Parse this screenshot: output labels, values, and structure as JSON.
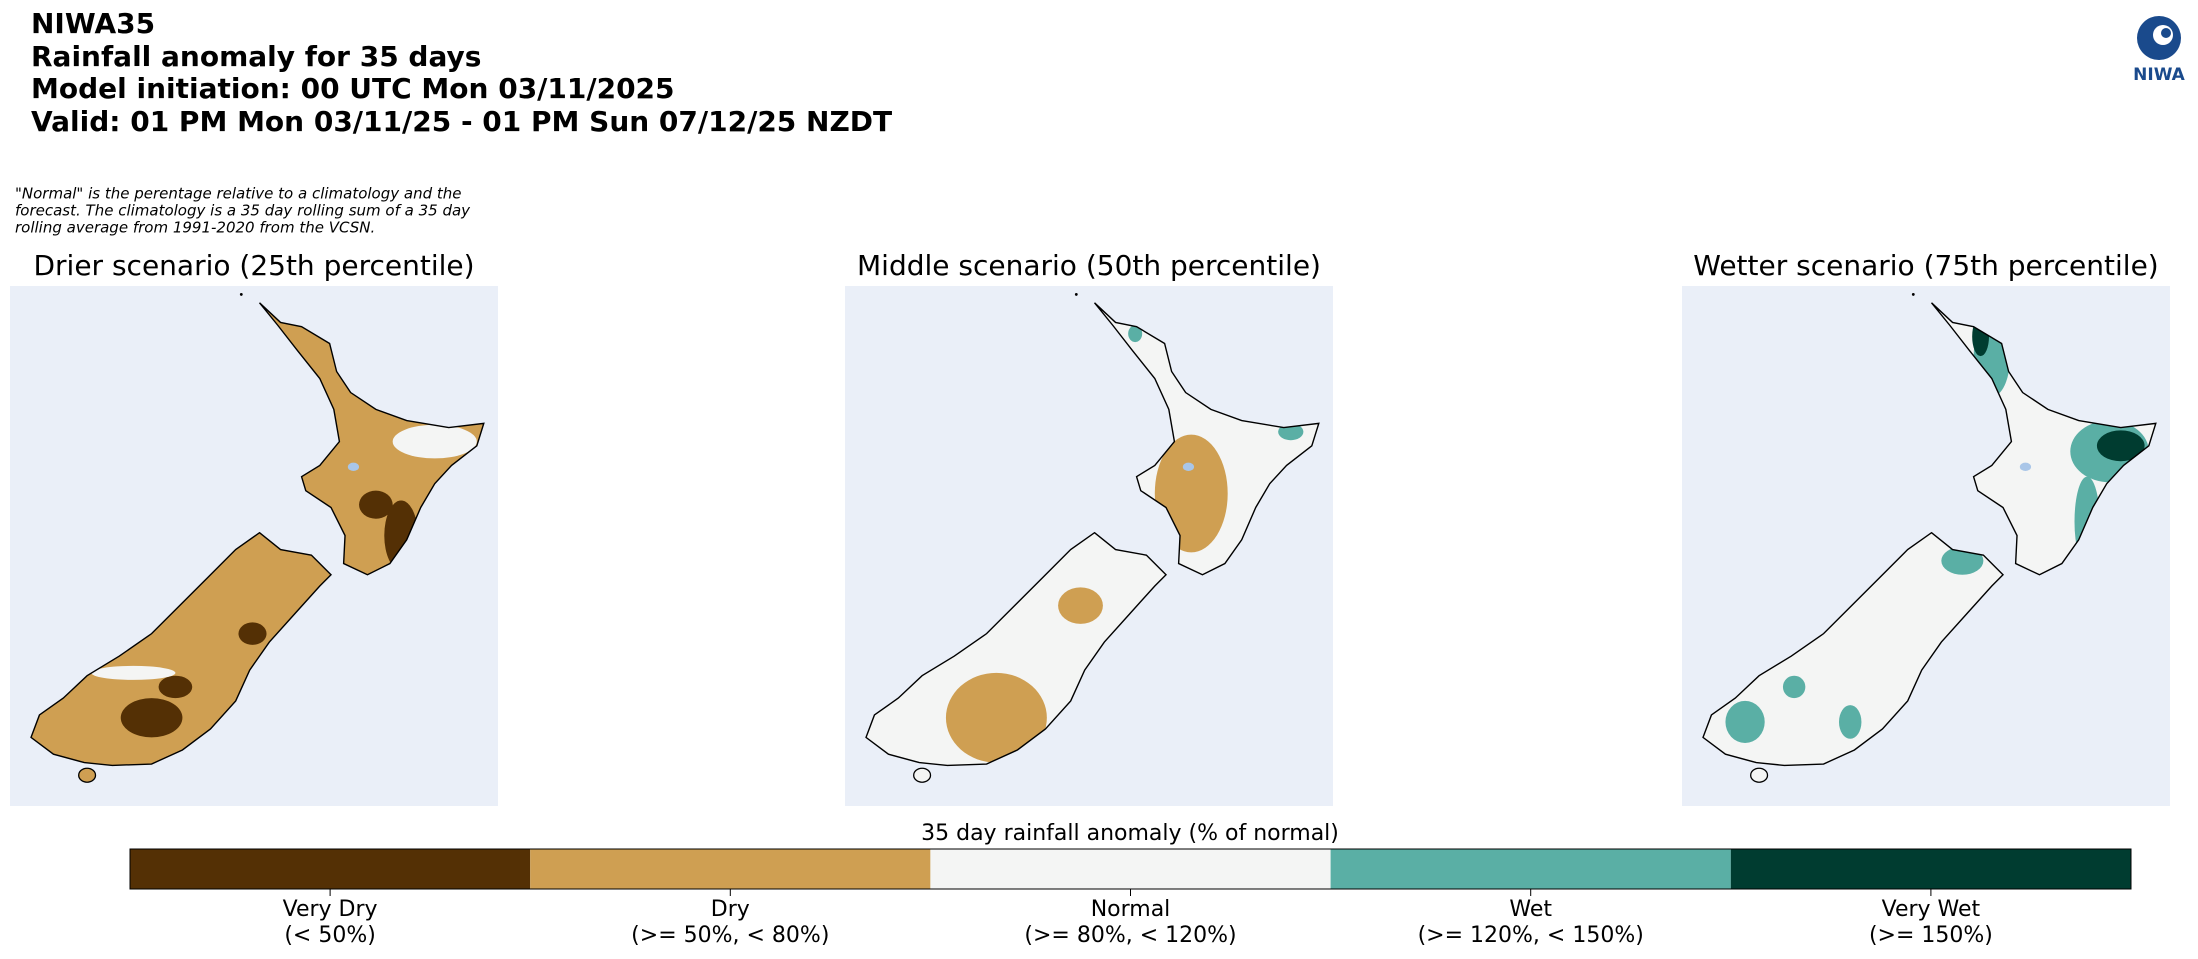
{
  "header": {
    "lines": [
      "NIWA35",
      "Rainfall anomaly for 35 days",
      "Model initiation: 00 UTC Mon 03/11/2025",
      "Valid: 01 PM Mon 03/11/25 - 01 PM Sun 07/12/25 NZDT"
    ]
  },
  "logo": "NIWA",
  "note": {
    "lines": [
      "\"Normal\" is the perentage relative to a climatology and the",
      "forecast. The climatology is a 35 day rolling sum of a 35 day",
      "rolling average from 1991-2020 from the VCSN."
    ]
  },
  "panels": [
    {
      "title": "Drier scenario (25th percentile)"
    },
    {
      "title": "Middle scenario (50th percentile)"
    },
    {
      "title": "Wetter scenario (75th percentile)"
    }
  ],
  "legend": {
    "title": "35 day rainfall anomaly (% of normal)",
    "classes": [
      {
        "name": "Very Dry",
        "range": "(< 50%)",
        "color": "#543005"
      },
      {
        "name": "Dry",
        "range": "(>= 50%, < 80%)",
        "color": "#cf9f52"
      },
      {
        "name": "Normal",
        "range": "(>= 80%, < 120%)",
        "color": "#f4f5f4"
      },
      {
        "name": "Wet",
        "range": "(>= 120%, < 150%)",
        "color": "#5aafa5"
      },
      {
        "name": "Very Wet",
        "range": "(>= 150%)",
        "color": "#003c30"
      }
    ]
  }
}
